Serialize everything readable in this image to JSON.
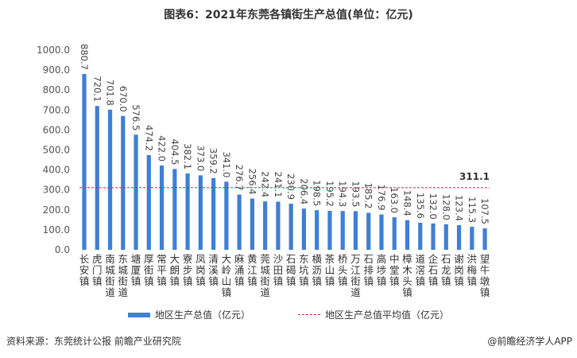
{
  "title": "图表6：2021年东莞各镇街生产总值(单位：亿元)",
  "chart_data": {
    "type": "bar",
    "title": "图表6：2021年东莞各镇街生产总值(单位：亿元)",
    "ylim": [
      0,
      1000
    ],
    "yticks": [
      "0.0",
      "100.0",
      "200.0",
      "300.0",
      "400.0",
      "500.0",
      "600.0",
      "700.0",
      "800.0",
      "900.0",
      "1000.0"
    ],
    "categories": [
      "长安镇",
      "虎门镇",
      "南城街道",
      "东城街道",
      "塘厦镇",
      "厚街镇",
      "常平镇",
      "大朗镇",
      "寮步镇",
      "凤岗镇",
      "清溪镇",
      "大岭山镇",
      "麻涌镇",
      "黄江镇",
      "莞城街道",
      "沙田镇",
      "石碣镇",
      "东坑镇",
      "横沥镇",
      "茶山镇",
      "桥头镇",
      "万江街道",
      "石排镇",
      "高埗镇",
      "中堂镇",
      "樟木头镇",
      "道滘镇",
      "企石镇",
      "石龙镇",
      "谢岗镇",
      "洪梅镇",
      "望牛墩镇"
    ],
    "series": [
      {
        "name": "地区生产总值（亿元）",
        "color": "#3f7fd4",
        "values": [
          880.7,
          720.1,
          701.8,
          670.0,
          576.5,
          474.2,
          422.0,
          404.5,
          382.1,
          373.0,
          359.2,
          341.0,
          276.7,
          256.4,
          242.4,
          241.1,
          230.9,
          206.4,
          198.5,
          195.2,
          194.3,
          193.5,
          185.2,
          176.9,
          163.0,
          148.4,
          135.6,
          132.0,
          128.0,
          123.4,
          115.3,
          107.5
        ]
      },
      {
        "name": "地区生产总值平均值（亿元）",
        "color": "#c0283a",
        "value": 311.1,
        "label": "311.1"
      }
    ],
    "legend": "bottom",
    "grid": false
  },
  "legend": {
    "bar_label": "地区生产总值（亿元）",
    "line_label": "地区生产总值平均值（亿元）"
  },
  "footer": {
    "source": "资料来源：东莞统计公报 前瞻产业研究院",
    "credit": "@前瞻经济学人APP"
  }
}
